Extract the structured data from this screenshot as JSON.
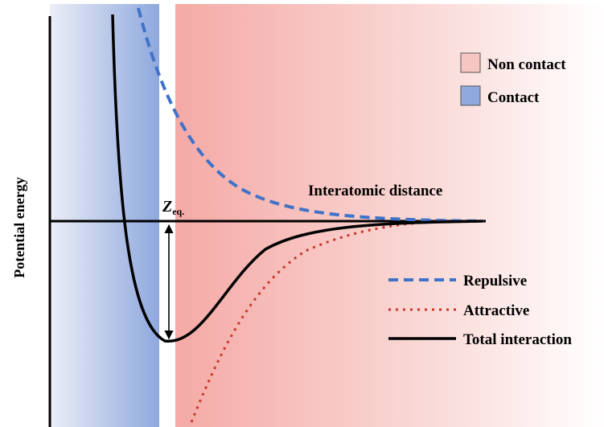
{
  "labels": {
    "y_axis": "Potential energy",
    "x_axis": "Interatomic distance",
    "zeq_main": "Z",
    "zeq_sub": "eq."
  },
  "legend_regions": [
    {
      "label": "Non contact",
      "color": "#f6b8b4"
    },
    {
      "label": "Contact",
      "color": "#8faadf"
    }
  ],
  "legend_curves": [
    {
      "label": "Repulsive",
      "color": "#3f72c9",
      "style": "dashed"
    },
    {
      "label": "Attractive",
      "color": "#c8382a",
      "style": "dotted"
    },
    {
      "label": "Total interaction",
      "color": "#000000",
      "style": "solid"
    }
  ],
  "colors": {
    "contact": "#8faadf",
    "non_contact": "#f6b8b4",
    "repulsive": "#3f72c9",
    "attractive": "#c8382a",
    "total": "#000000"
  }
}
